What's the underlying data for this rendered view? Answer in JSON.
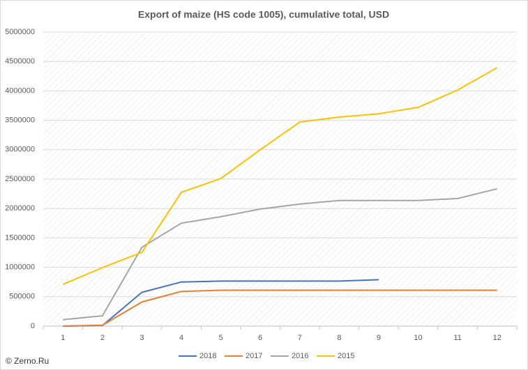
{
  "chart_data": {
    "type": "line",
    "title": "Export of maize (HS code 1005), cumulative total, USD",
    "categories": [
      "1",
      "2",
      "3",
      "4",
      "5",
      "6",
      "7",
      "8",
      "9",
      "10",
      "11",
      "12"
    ],
    "series": [
      {
        "name": "2018",
        "color": "#4472c4",
        "values": [
          0,
          10000,
          575000,
          750000,
          765000,
          765000,
          765000,
          765000,
          790000,
          null,
          null,
          null
        ]
      },
      {
        "name": "2017",
        "color": "#ed7d31",
        "values": [
          0,
          15000,
          410000,
          590000,
          610000,
          610000,
          610000,
          610000,
          610000,
          610000,
          610000,
          610000
        ]
      },
      {
        "name": "2016",
        "color": "#a5a5a5",
        "values": [
          110000,
          175000,
          1340000,
          1750000,
          1860000,
          1990000,
          2075000,
          2135000,
          2135000,
          2135000,
          2170000,
          2335000
        ]
      },
      {
        "name": "2015",
        "color": "#ffc000",
        "values": [
          710000,
          995000,
          1255000,
          2275000,
          2510000,
          3000000,
          3470000,
          3555000,
          3610000,
          3720000,
          4015000,
          4395000
        ]
      }
    ],
    "ylim": [
      0,
      5000000
    ],
    "yticks": [
      0,
      500000,
      1000000,
      1500000,
      2000000,
      2500000,
      3000000,
      3500000,
      4000000,
      4500000,
      5000000
    ],
    "grid": true,
    "legend": "bottom",
    "footer": "© Zerno.Ru"
  }
}
